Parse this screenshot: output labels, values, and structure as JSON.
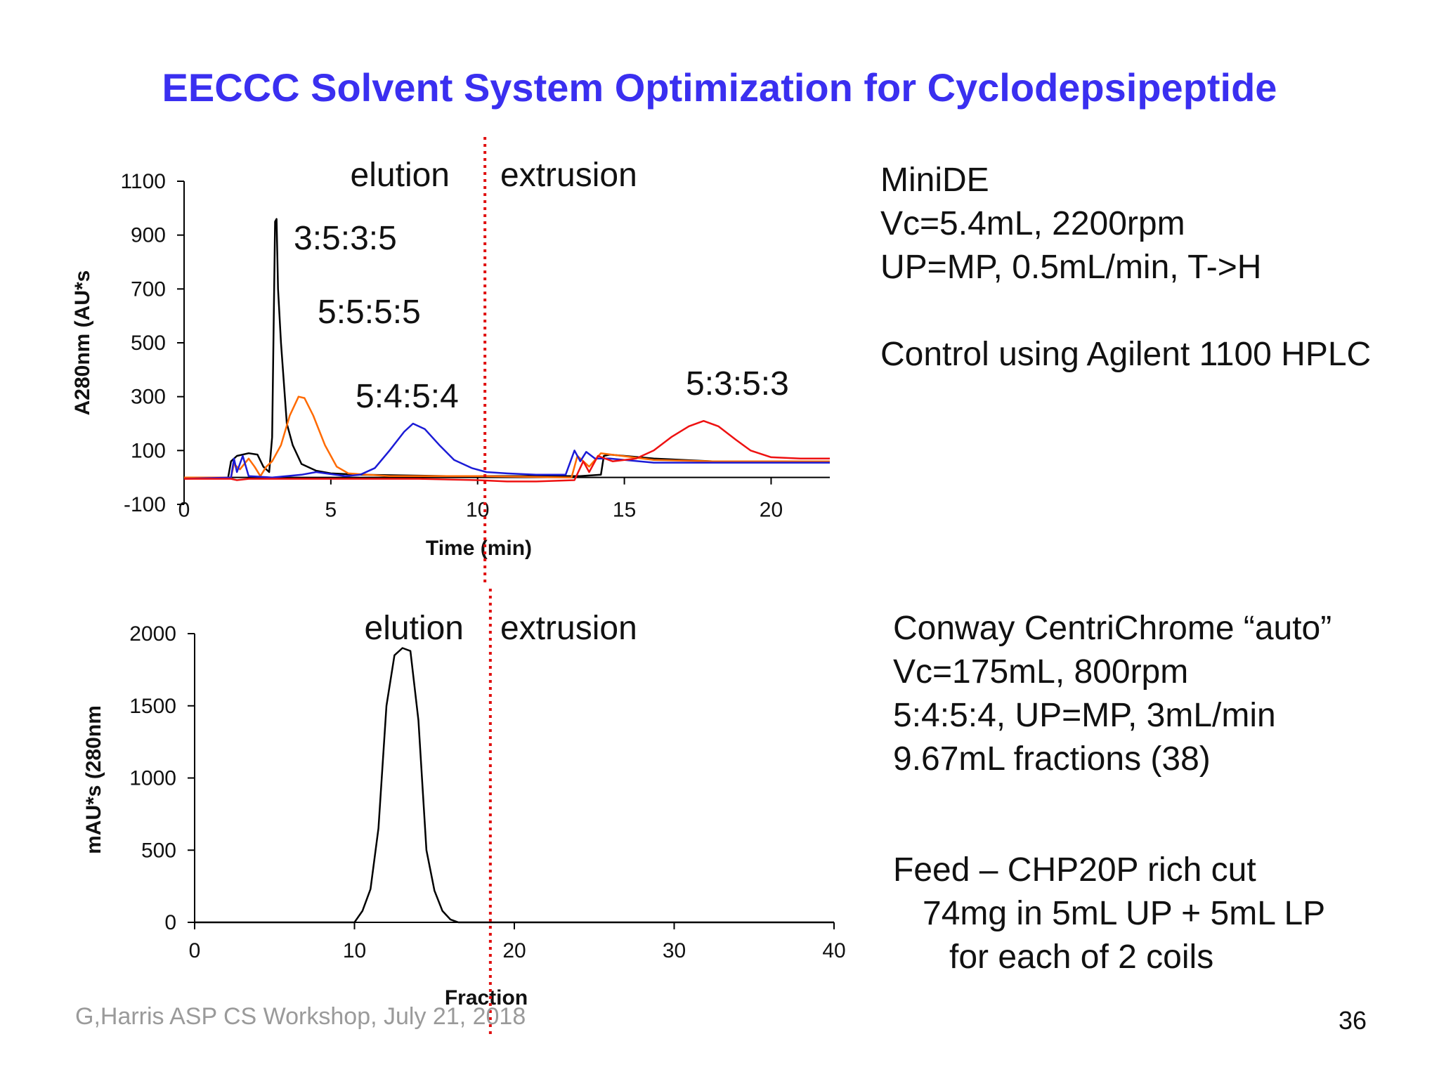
{
  "slide": {
    "title": "EECCC Solvent System Optimization for Cyclodepsipeptide",
    "footer": "G,Harris ASP CS Workshop, July 21, 2018",
    "page_number": "36"
  },
  "info_top": {
    "lines": [
      "MiniDE",
      "Vc=5.4mL, 2200rpm",
      "UP=MP, 0.5mL/min, T->H",
      "",
      "Control using Agilent 1100 HPLC"
    ]
  },
  "info_bottom": {
    "lines": [
      "Conway CentriChrome “auto”",
      "Vc=175mL, 800rpm",
      "5:4:5:4, UP=MP, 3mL/min",
      "9.67mL fractions (38)"
    ]
  },
  "feed": {
    "lines": [
      "Feed – CHP20P rich cut",
      "74mg in 5mL UP + 5mL LP",
      "for each of 2 coils"
    ]
  },
  "chart_data": [
    {
      "type": "line",
      "title": "",
      "xlabel": "Time (min)",
      "ylabel": "A280nm (AU*s",
      "xlim": [
        0,
        22
      ],
      "ylim": [
        -100,
        1100
      ],
      "x_ticks": [
        0,
        5,
        10,
        15,
        20
      ],
      "y_ticks": [
        1100,
        900,
        700,
        500,
        300,
        100,
        -100
      ],
      "divider_x": 10.25,
      "region_labels": [
        "elution",
        "extrusion"
      ],
      "series": [
        {
          "name": "3:5:3:5",
          "color": "#000000",
          "points": [
            [
              0,
              0
            ],
            [
              1.5,
              0
            ],
            [
              1.6,
              60
            ],
            [
              1.8,
              80
            ],
            [
              2.2,
              90
            ],
            [
              2.5,
              85
            ],
            [
              2.7,
              40
            ],
            [
              2.9,
              20
            ],
            [
              3.0,
              150
            ],
            [
              3.1,
              950
            ],
            [
              3.15,
              960
            ],
            [
              3.2,
              700
            ],
            [
              3.3,
              500
            ],
            [
              3.5,
              200
            ],
            [
              3.7,
              120
            ],
            [
              4.0,
              50
            ],
            [
              4.5,
              25
            ],
            [
              5,
              15
            ],
            [
              6,
              10
            ],
            [
              9,
              5
            ],
            [
              12,
              5
            ],
            [
              13.5,
              5
            ],
            [
              14.2,
              10
            ],
            [
              14.3,
              80
            ],
            [
              14.5,
              85
            ],
            [
              16,
              70
            ],
            [
              18,
              60
            ],
            [
              20,
              60
            ],
            [
              22,
              60
            ]
          ]
        },
        {
          "name": "5:5:5:5",
          "color": "#ff6a00",
          "points": [
            [
              0,
              0
            ],
            [
              1.6,
              0
            ],
            [
              1.7,
              50
            ],
            [
              1.9,
              30
            ],
            [
              2.2,
              70
            ],
            [
              2.4,
              40
            ],
            [
              2.6,
              5
            ],
            [
              2.8,
              40
            ],
            [
              3.0,
              60
            ],
            [
              3.3,
              120
            ],
            [
              3.6,
              230
            ],
            [
              3.9,
              300
            ],
            [
              4.1,
              295
            ],
            [
              4.4,
              230
            ],
            [
              4.8,
              120
            ],
            [
              5.2,
              40
            ],
            [
              5.6,
              15
            ],
            [
              7,
              5
            ],
            [
              10,
              5
            ],
            [
              13.2,
              0
            ],
            [
              13.4,
              80
            ],
            [
              13.8,
              40
            ],
            [
              14.2,
              90
            ],
            [
              16,
              65
            ],
            [
              18,
              60
            ],
            [
              20,
              60
            ],
            [
              22,
              60
            ]
          ]
        },
        {
          "name": "5:4:5:4",
          "color": "#1b1bd6",
          "points": [
            [
              0,
              -5
            ],
            [
              1.6,
              0
            ],
            [
              1.7,
              70
            ],
            [
              1.8,
              20
            ],
            [
              2.0,
              80
            ],
            [
              2.2,
              5
            ],
            [
              3.0,
              0
            ],
            [
              4.0,
              10
            ],
            [
              4.5,
              20
            ],
            [
              5.5,
              5
            ],
            [
              6,
              10
            ],
            [
              6.5,
              35
            ],
            [
              7.0,
              100
            ],
            [
              7.5,
              170
            ],
            [
              7.8,
              200
            ],
            [
              8.2,
              180
            ],
            [
              8.7,
              120
            ],
            [
              9.2,
              65
            ],
            [
              9.8,
              35
            ],
            [
              10.3,
              20
            ],
            [
              11,
              15
            ],
            [
              12,
              10
            ],
            [
              13,
              10
            ],
            [
              13.3,
              100
            ],
            [
              13.5,
              60
            ],
            [
              13.7,
              95
            ],
            [
              14,
              70
            ],
            [
              14.5,
              70
            ],
            [
              16,
              55
            ],
            [
              18,
              55
            ],
            [
              20,
              55
            ],
            [
              22,
              55
            ]
          ]
        },
        {
          "name": "5:3:5:3",
          "color": "#ee1111",
          "points": [
            [
              0,
              -5
            ],
            [
              1.6,
              -5
            ],
            [
              1.8,
              -10
            ],
            [
              2.2,
              -5
            ],
            [
              4,
              -5
            ],
            [
              6,
              -5
            ],
            [
              8,
              -5
            ],
            [
              10,
              -10
            ],
            [
              11,
              -15
            ],
            [
              12,
              -15
            ],
            [
              13.3,
              -10
            ],
            [
              13.6,
              60
            ],
            [
              13.8,
              20
            ],
            [
              14.1,
              80
            ],
            [
              14.6,
              60
            ],
            [
              15.4,
              70
            ],
            [
              16,
              100
            ],
            [
              16.6,
              150
            ],
            [
              17.2,
              190
            ],
            [
              17.7,
              210
            ],
            [
              18.2,
              190
            ],
            [
              18.8,
              140
            ],
            [
              19.3,
              100
            ],
            [
              20,
              75
            ],
            [
              21,
              70
            ],
            [
              22,
              70
            ]
          ]
        }
      ],
      "annotations": [
        "3:5:3:5",
        "5:5:5:5",
        "5:4:5:4",
        "5:3:5:3"
      ]
    },
    {
      "type": "line",
      "title": "",
      "xlabel": "Fraction",
      "ylabel": "mAU*s (280nm",
      "xlim": [
        0,
        40
      ],
      "ylim": [
        0,
        2000
      ],
      "x_ticks": [
        0,
        10,
        20,
        30,
        40
      ],
      "y_ticks": [
        2000,
        1500,
        1000,
        500,
        0
      ],
      "divider_x": 18.5,
      "region_labels": [
        "elution",
        "extrusion"
      ],
      "series": [
        {
          "name": "5:4:5:4",
          "color": "#000000",
          "points": [
            [
              0,
              0
            ],
            [
              10,
              0
            ],
            [
              10.5,
              80
            ],
            [
              11,
              230
            ],
            [
              11.5,
              650
            ],
            [
              12,
              1500
            ],
            [
              12.5,
              1850
            ],
            [
              13,
              1900
            ],
            [
              13.5,
              1880
            ],
            [
              14,
              1400
            ],
            [
              14.5,
              500
            ],
            [
              15,
              220
            ],
            [
              15.5,
              80
            ],
            [
              16,
              20
            ],
            [
              16.5,
              0
            ],
            [
              40,
              0
            ]
          ]
        }
      ]
    }
  ]
}
